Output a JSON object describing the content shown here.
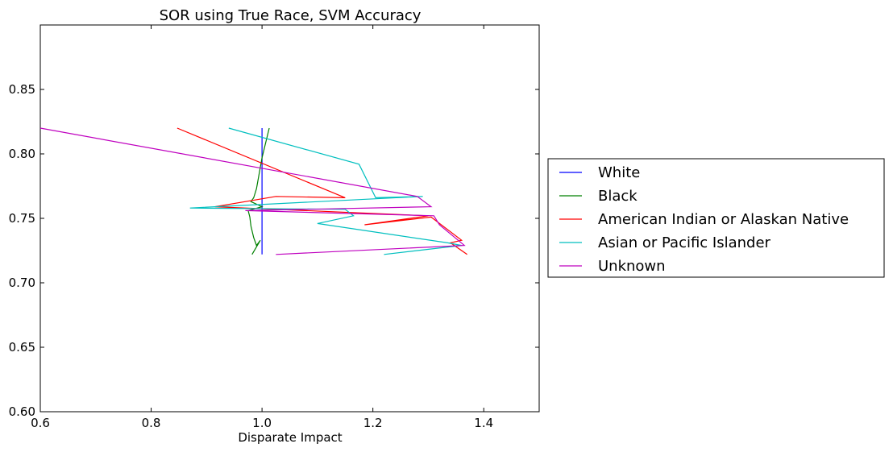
{
  "chart_data": {
    "type": "line",
    "title": "SOR using True Race, SVM Accuracy",
    "xlabel": "Disparate Impact",
    "ylabel": "",
    "xlim": [
      0.6,
      1.5
    ],
    "ylim": [
      0.6,
      0.9
    ],
    "xticks": [
      0.6,
      0.8,
      1.0,
      1.2,
      1.4
    ],
    "xtick_labels": [
      "0.6",
      "0.8",
      "1.0",
      "1.2",
      "1.4"
    ],
    "yticks": [
      0.6,
      0.65,
      0.7,
      0.75,
      0.8,
      0.85
    ],
    "ytick_labels": [
      "0.60",
      "0.65",
      "0.70",
      "0.75",
      "0.80",
      "0.85"
    ],
    "grid": false,
    "legend_position": "right-outside",
    "series": [
      {
        "name": "White",
        "color": "#0000ff",
        "x": [
          1.0,
          1.0,
          1.0,
          1.0,
          1.0
        ],
        "y": [
          0.82,
          0.78,
          0.75,
          0.74,
          0.722
        ]
      },
      {
        "name": "Black",
        "color": "#008000",
        "x": [
          1.013,
          1.0,
          0.99,
          0.985,
          0.98,
          1.0,
          0.975,
          0.978,
          0.98,
          0.985,
          0.99,
          0.997,
          0.982
        ],
        "y": [
          0.82,
          0.797,
          0.773,
          0.766,
          0.763,
          0.759,
          0.756,
          0.751,
          0.744,
          0.735,
          0.729,
          0.733,
          0.722
        ]
      },
      {
        "name": "American Indian or Alaskan Native",
        "color": "#ff0000",
        "x": [
          0.847,
          1.15,
          1.025,
          0.915,
          1.3,
          1.185,
          1.305,
          1.36,
          1.34,
          1.37
        ],
        "y": [
          0.82,
          0.766,
          0.767,
          0.759,
          0.752,
          0.745,
          0.751,
          0.733,
          0.731,
          0.722
        ]
      },
      {
        "name": "Asian or Pacific Islander",
        "color": "#00bfbf",
        "x": [
          0.94,
          1.175,
          1.205,
          1.29,
          0.87,
          1.15,
          1.165,
          1.1,
          1.335,
          1.36,
          1.22
        ],
        "y": [
          0.82,
          0.792,
          0.766,
          0.767,
          0.758,
          0.757,
          0.752,
          0.746,
          0.731,
          0.729,
          0.722
        ]
      },
      {
        "name": "Unknown",
        "color": "#bf00bf",
        "x": [
          0.6,
          1.28,
          1.305,
          0.97,
          1.31,
          1.32,
          1.365,
          1.025
        ],
        "y": [
          0.82,
          0.767,
          0.759,
          0.756,
          0.752,
          0.745,
          0.729,
          0.722
        ]
      }
    ]
  }
}
